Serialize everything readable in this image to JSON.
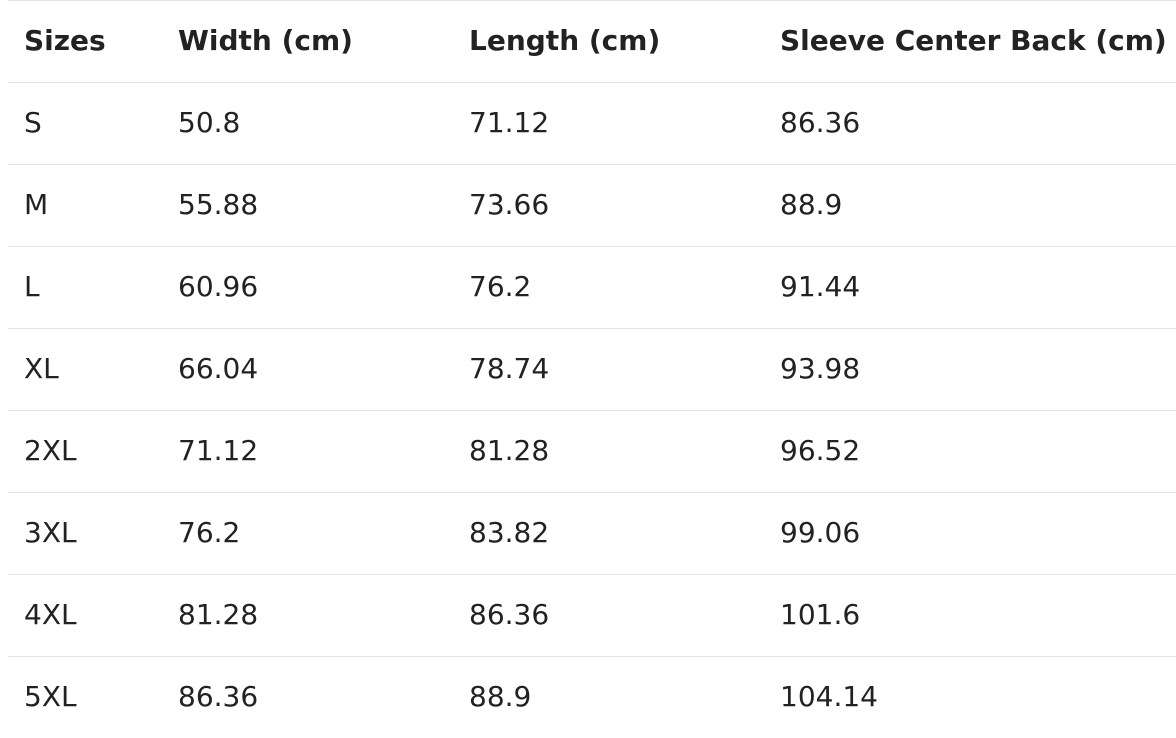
{
  "table": {
    "header": [
      "Sizes",
      "Width (cm)",
      "Length (cm)",
      "Sleeve Center Back (cm)"
    ],
    "rows": [
      [
        "S",
        50.8,
        71.12,
        86.36
      ],
      [
        "M",
        55.88,
        73.66,
        88.9
      ],
      [
        "L",
        60.96,
        76.2,
        91.44
      ],
      [
        "XL",
        66.04,
        78.74,
        93.98
      ],
      [
        "2XL",
        71.12,
        81.28,
        96.52
      ],
      [
        "3XL",
        76.2,
        83.82,
        99.06
      ],
      [
        "4XL",
        81.28,
        86.36,
        101.6
      ],
      [
        "5XL",
        86.36,
        88.9,
        104.14
      ]
    ]
  }
}
